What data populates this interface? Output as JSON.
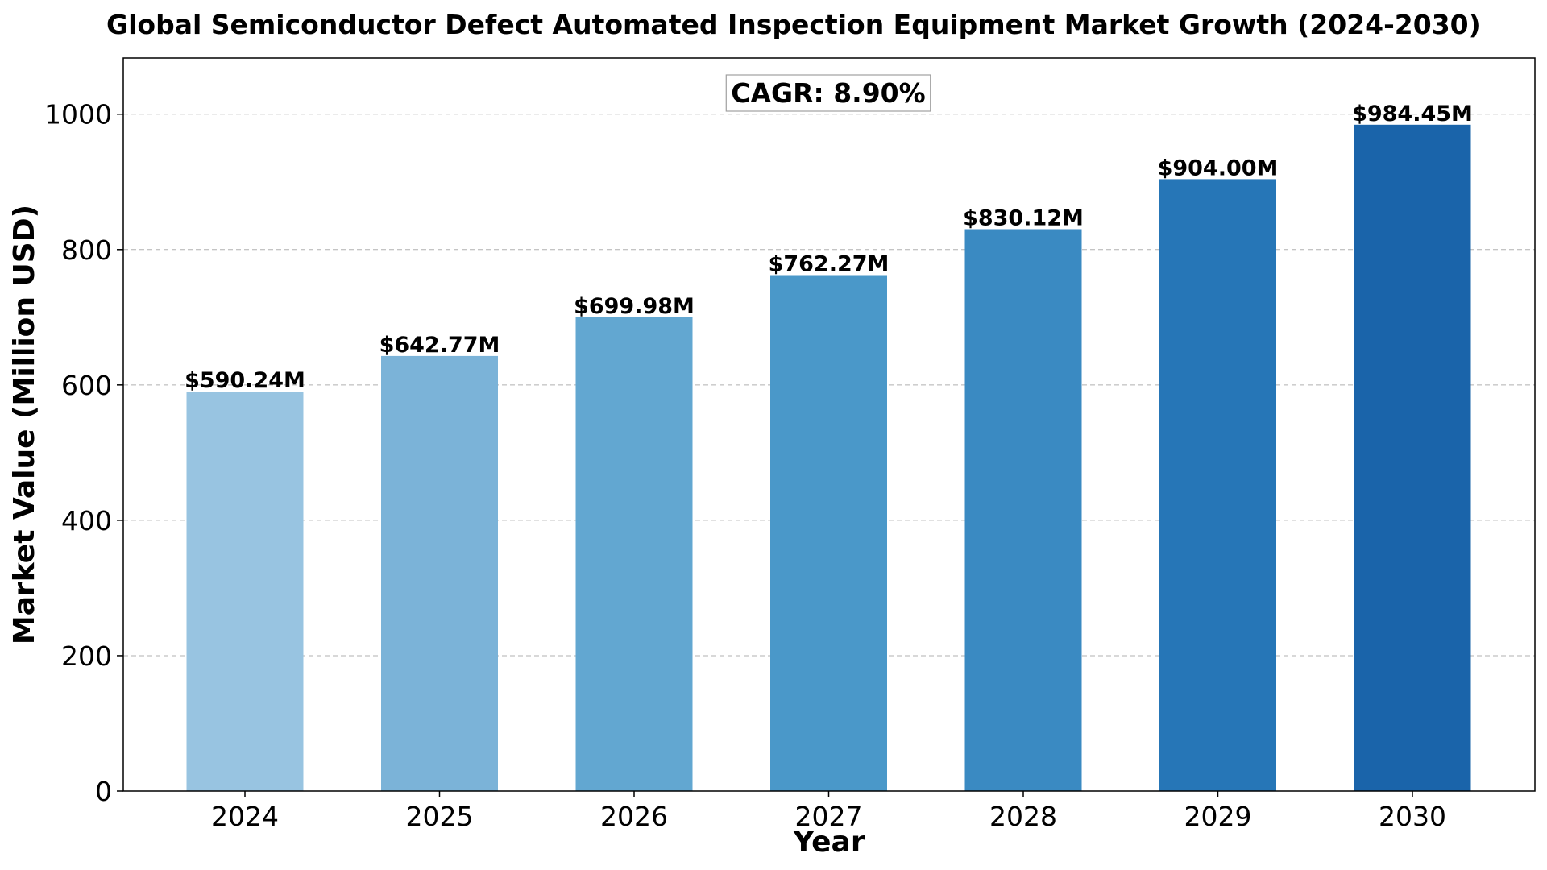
{
  "chart_data": {
    "type": "bar",
    "title": "Global Semiconductor Defect Automated Inspection Equipment Market Growth (2024-2030)",
    "xlabel": "Year",
    "ylabel": "Market Value (Million USD)",
    "categories": [
      "2024",
      "2025",
      "2026",
      "2027",
      "2028",
      "2029",
      "2030"
    ],
    "values": [
      590.24,
      642.77,
      699.98,
      762.27,
      830.12,
      904.0,
      984.45
    ],
    "data_labels": [
      "$590.24M",
      "$642.77M",
      "$699.98M",
      "$762.27M",
      "$830.12M",
      "$904.00M",
      "$984.45M"
    ],
    "bar_colors": [
      "#98c4e1",
      "#7bb3d8",
      "#62a7d1",
      "#4a98c9",
      "#3a8ac2",
      "#2676b7",
      "#1a64aa"
    ],
    "ylim": [
      0,
      1083
    ],
    "yticks": [
      0,
      200,
      400,
      600,
      800,
      1000
    ],
    "ytick_labels": [
      "0",
      "200",
      "400",
      "600",
      "800",
      "1000"
    ],
    "grid": true,
    "annotation": "CAGR: 8.90%"
  }
}
